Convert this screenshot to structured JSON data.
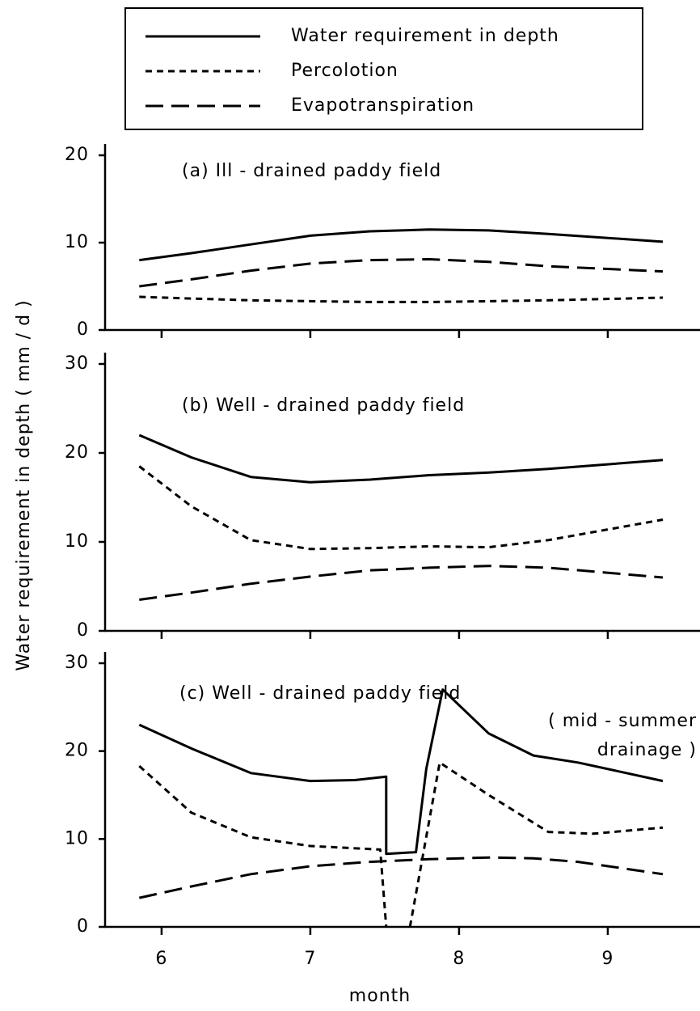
{
  "chart_data": [
    {
      "type": "line",
      "title": "(a)  Ill - drained  paddy field",
      "xlim": [
        5.62,
        9.62
      ],
      "xticks": [
        6,
        7,
        8,
        9
      ],
      "ylim": [
        0,
        20
      ],
      "yticks": [
        0,
        10,
        20
      ],
      "series": [
        {
          "name": "Water requirement in depth",
          "dash": "none",
          "x": [
            5.85,
            6.2,
            6.6,
            7.0,
            7.4,
            7.8,
            8.2,
            8.6,
            9.37
          ],
          "values": [
            8,
            8.8,
            9.8,
            10.8,
            11.3,
            11.5,
            11.4,
            11,
            10.1
          ]
        },
        {
          "name": "Percolotion",
          "dash": "8 6",
          "x": [
            5.85,
            6.2,
            6.6,
            7.0,
            7.4,
            7.8,
            8.2,
            8.6,
            9.37
          ],
          "values": [
            3.8,
            3.6,
            3.4,
            3.3,
            3.2,
            3.2,
            3.3,
            3.4,
            3.7
          ]
        },
        {
          "name": "Evapotranspiration",
          "dash": "22 10",
          "x": [
            5.85,
            6.2,
            6.6,
            7.0,
            7.4,
            7.8,
            8.2,
            8.6,
            9.37
          ],
          "values": [
            5,
            5.8,
            6.8,
            7.6,
            8,
            8.1,
            7.8,
            7.3,
            6.7
          ]
        }
      ]
    },
    {
      "type": "line",
      "title": "(b)  Well - drained  paddy field",
      "ylabel": "Water requirement in depth ( mm / d )",
      "xlim": [
        5.62,
        9.62
      ],
      "xticks": [
        6,
        7,
        8,
        9
      ],
      "ylim": [
        0,
        30
      ],
      "yticks": [
        0,
        10,
        20,
        30
      ],
      "series": [
        {
          "dash": "none",
          "x": [
            5.85,
            6.2,
            6.6,
            7.0,
            7.4,
            7.8,
            8.2,
            8.6,
            9.37
          ],
          "values": [
            22,
            19.5,
            17.3,
            16.7,
            17,
            17.5,
            17.8,
            18.2,
            19.2
          ]
        },
        {
          "dash": "8 6",
          "x": [
            5.85,
            6.2,
            6.6,
            7.0,
            7.4,
            7.8,
            8.2,
            8.6,
            9.37
          ],
          "values": [
            18.5,
            14,
            10.2,
            9.2,
            9.3,
            9.5,
            9.4,
            10.2,
            12.5
          ]
        },
        {
          "dash": "22 10",
          "x": [
            5.85,
            6.2,
            6.6,
            7.0,
            7.4,
            7.8,
            8.2,
            8.6,
            9.37
          ],
          "values": [
            3.5,
            4.3,
            5.3,
            6.1,
            6.8,
            7.1,
            7.3,
            7.1,
            6
          ]
        }
      ]
    },
    {
      "type": "line",
      "title": "(c)  Well - drained   paddy field",
      "annotation": [
        "( mid - summer",
        "drainage )"
      ],
      "xlabel": "month",
      "xlim": [
        5.62,
        9.62
      ],
      "xticks": [
        6,
        7,
        8,
        9
      ],
      "ylim": [
        0,
        30
      ],
      "yticks": [
        0,
        10,
        20,
        30
      ],
      "series": [
        {
          "dash": "none",
          "x": [
            5.85,
            6.2,
            6.6,
            7.0,
            7.3,
            7.51,
            7.51,
            7.71,
            7.78,
            7.89,
            8.2,
            8.5,
            8.8,
            9.37
          ],
          "values": [
            23,
            20.3,
            17.5,
            16.6,
            16.7,
            17.1,
            8.3,
            8.5,
            18,
            27,
            22,
            19.5,
            18.7,
            16.6
          ]
        },
        {
          "dash": "8 6",
          "x": [
            5.85,
            6.2,
            6.6,
            7.0,
            7.47,
            7.51,
            7.59,
            7.67,
            7.87,
            8.2,
            8.6,
            8.9,
            9.37
          ],
          "values": [
            18.3,
            13,
            10.2,
            9.2,
            8.8,
            0,
            null,
            0,
            18.7,
            15,
            10.8,
            10.6,
            11.3
          ]
        },
        {
          "dash": "22 10",
          "x": [
            5.85,
            6.2,
            6.6,
            7.0,
            7.4,
            7.8,
            8.2,
            8.5,
            8.8,
            9.37
          ],
          "values": [
            3.3,
            4.6,
            6,
            6.9,
            7.4,
            7.7,
            7.9,
            7.8,
            7.4,
            6
          ]
        }
      ]
    }
  ]
}
